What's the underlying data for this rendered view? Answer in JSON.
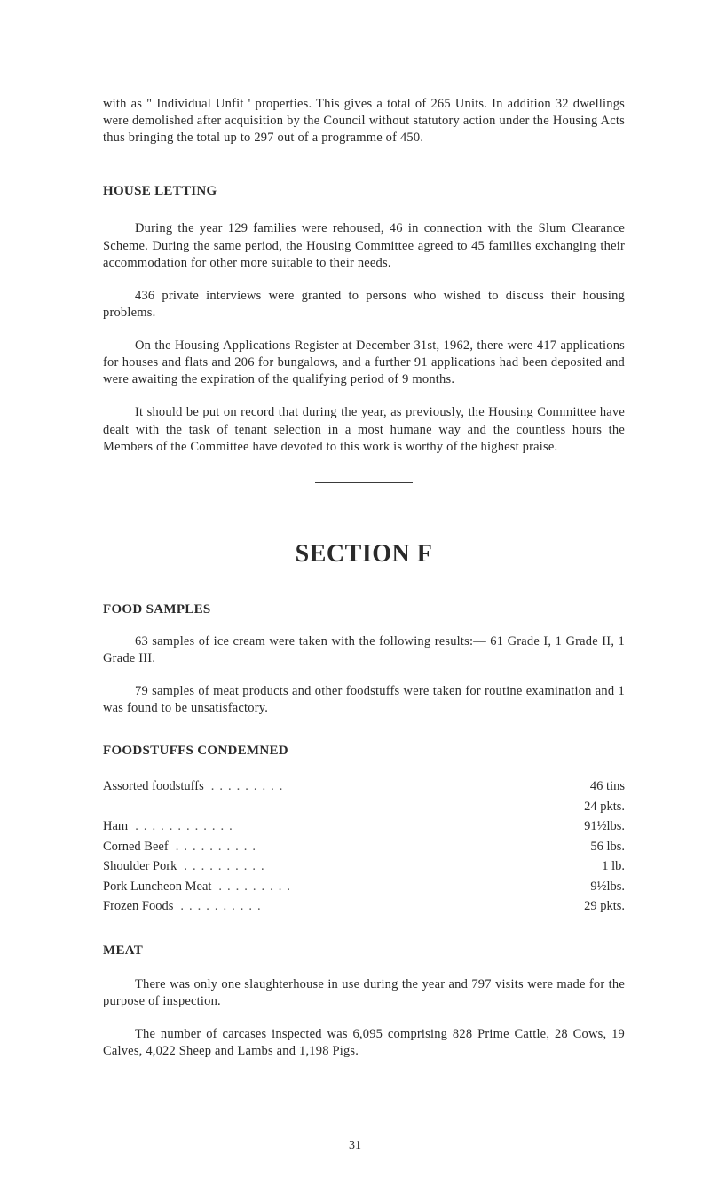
{
  "intro_para": "with as \" Individual Unfit ' properties. This gives a total of 265 Units. In addition 32 dwellings were demolished after acquisition by the Council without statutory action under the Housing Acts thus bringing the total up to 297 out of a programme of 450.",
  "house_letting": {
    "heading": "HOUSE LETTING",
    "para1": "During the year 129 families were rehoused, 46 in connection with the Slum Clearance Scheme. During the same period, the Housing Committee agreed to 45 families exchanging their accommodation for other more suitable to their needs.",
    "para2": "436 private interviews were granted to persons who wished to discuss their housing problems.",
    "para3": "On the Housing Applications Register at December 31st, 1962, there were 417 applications for houses and flats and 206 for bungalows, and a further 91 applications had been deposited and were awaiting the expiration of the qualifying period of 9 months.",
    "para4": "It should be put on record that during the year, as previously, the Housing Committee have dealt with the task of tenant selection in a most humane way and the countless hours the Members of the Committee have devoted to this work is worthy of the highest praise."
  },
  "section_f": {
    "title": "SECTION F",
    "food_samples": {
      "heading": "FOOD SAMPLES",
      "para1": "63 samples of ice cream were taken with the following results:— 61 Grade I, 1 Grade II, 1 Grade III.",
      "para2": "79 samples of meat products and other foodstuffs were taken for routine examination and 1 was found to be unsatisfactory."
    },
    "foodstuffs": {
      "heading": "FOODSTUFFS CONDEMNED",
      "rows": [
        {
          "item": "Assorted foodstuffs",
          "value": "46 tins"
        },
        {
          "item": "",
          "value": "24 pkts."
        },
        {
          "item": "Ham",
          "value": "91½lbs."
        },
        {
          "item": "Corned Beef",
          "value": "56 lbs."
        },
        {
          "item": "Shoulder Pork",
          "value": "1 lb."
        },
        {
          "item": "Pork Luncheon Meat",
          "value": "9½lbs."
        },
        {
          "item": "Frozen Foods",
          "value": "29 pkts."
        }
      ]
    },
    "meat": {
      "heading": "MEAT",
      "para1": "There was only one slaughterhouse in use during the year and 797 visits were made for the purpose of inspection.",
      "para2": "The number of carcases inspected was 6,095 comprising 828 Prime Cattle, 28 Cows, 19 Calves, 4,022 Sheep and Lambs and 1,198 Pigs."
    }
  },
  "page_number": "31"
}
